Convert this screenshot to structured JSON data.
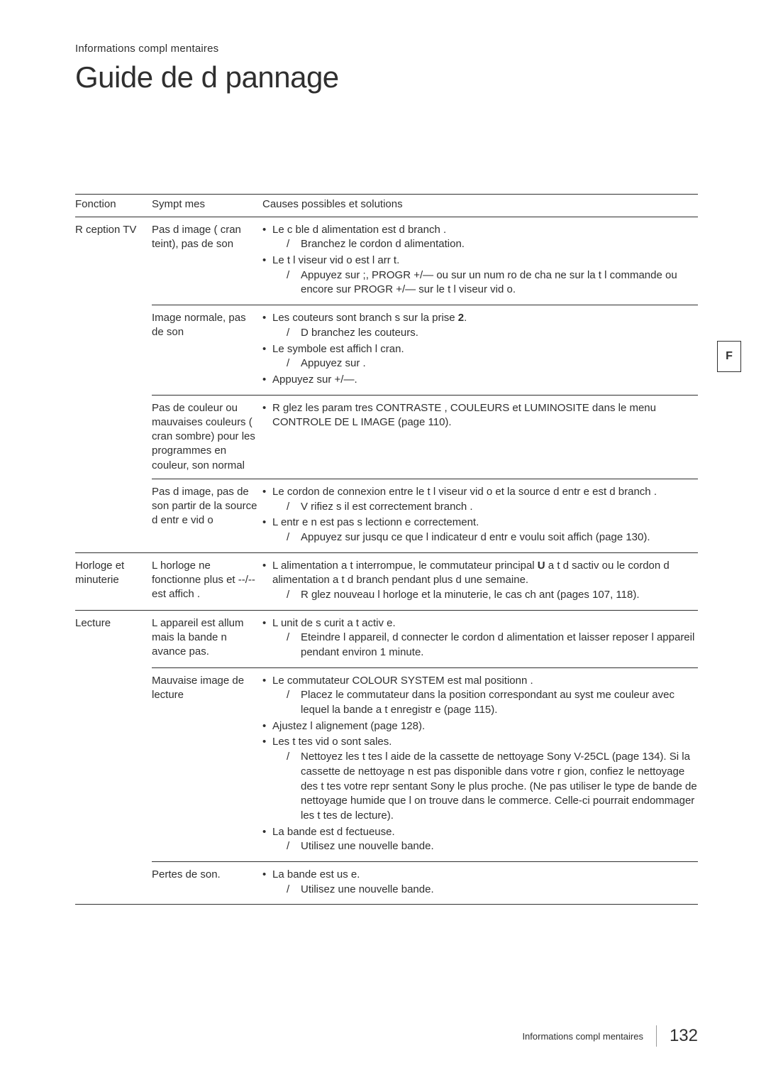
{
  "pretitle": "Informations compl mentaires",
  "title": "Guide de d pannage",
  "side_tab": "F",
  "headers": {
    "fn": "Fonction",
    "sy": "Sympt mes",
    "cs": "Causes possibles et solutions"
  },
  "groups": [
    {
      "fn": "R ception TV",
      "rows": [
        {
          "sy": "Pas d image ( cran  teint), pas de son",
          "items": [
            {
              "t": "Le c ble d alimentation est d branch .",
              "s": [
                "Branchez le cordon d alimentation."
              ]
            },
            {
              "t": "Le t l viseur vid o est  l arr t.",
              "s": [
                "Appuyez sur  ;, PROGR +/— ou sur un num ro de cha ne sur la t l commande ou encore sur PROGR +/— sur le t l viseur vid o."
              ]
            }
          ]
        },
        {
          "sy": "Image normale, pas de son",
          "items": [
            {
              "tail": ".",
              "t": "Les  couteurs sont branch s sur la prise ",
              "tb": "2",
              "s": [
                "D branchez les  couteurs."
              ]
            },
            {
              "t": "Le symbole   est affich   l cran.",
              "s": [
                "Appuyez sur    ."
              ]
            },
            {
              "t": "Appuyez sur     +/—."
            }
          ]
        },
        {
          "sy": "Pas de couleur ou mauvaises couleurs ( cran sombre) pour les programmes en couleur, son normal",
          "items": [
            {
              "t": "R glez les param tres  CONTRASTE ,  COULEURS  et  LUMINOSITE  dans le menu CONTROLE DE L IMAGE (page 110)."
            }
          ]
        },
        {
          "sy": "Pas d image, pas de son  partir de la source d entr e vid o",
          "items": [
            {
              "t": "Le cordon de connexion entre le t l viseur vid o et la source d entr e est d branch .",
              "s": [
                "V rifiez s il est correctement branch ."
              ]
            },
            {
              "t": "L entr e n est pas s lectionn e correctement.",
              "s": [
                "Appuyez sur       jusqu  ce que l indicateur d entr e voulu soit affich  (page 130)."
              ]
            }
          ]
        }
      ]
    },
    {
      "fn": "Horloge et minuterie",
      "rows": [
        {
          "sy": "L horloge ne fonctionne plus et --/-- est affich .",
          "items": [
            {
              "t": "L alimentation a t  interrompue, le commutateur principal      ",
              "tb": "U",
              "tail": " a t  d sactiv  ou le cordon d alimentation a t  d branch  pendant plus d une semaine.",
              "s": [
                "R glez  nouveau l horloge et la minuterie, le cas  ch ant (pages 107, 118)."
              ]
            }
          ]
        }
      ]
    },
    {
      "fn": "Lecture",
      "rows": [
        {
          "sy": "L appareil est allum  mais la bande n avance pas.",
          "items": [
            {
              "t": "L unit  de s curit  a t  activ e.",
              "s": [
                "Eteindre l appareil, d connecter le cordon d alimentation et laisser reposer l appareil pendant environ 1 minute."
              ]
            }
          ]
        },
        {
          "sy": "Mauvaise image de lecture",
          "items": [
            {
              "t": "Le commutateur COLOUR SYSTEM est mal positionn .",
              "s": [
                "Placez le commutateur dans la position correspondant au syst me couleur avec lequel la bande a t  enregistr e (page 115)."
              ]
            },
            {
              "t": "Ajustez l alignement (page 128)."
            },
            {
              "t": "Les t tes vid o sont sales.",
              "s": [
                "Nettoyez les t tes  l aide de la cassette de nettoyage Sony V-25CL (page 134). Si la cassette de nettoyage n est pas disponible dans votre r gion, confiez le nettoyage des t tes  votre repr sentant Sony le plus proche. (Ne pas utiliser le type de bande de nettoyage humide que l on trouve dans le commerce. Celle-ci pourrait endommager les t tes de lecture)."
              ]
            },
            {
              "t": "La bande est d fectueuse.",
              "s": [
                "Utilisez une nouvelle bande."
              ]
            }
          ]
        },
        {
          "sy": "Pertes de son.",
          "items": [
            {
              "t": "La bande est us e.",
              "s": [
                "Utilisez une nouvelle bande."
              ]
            }
          ]
        }
      ]
    }
  ],
  "footer": {
    "section": "Informations compl mentaires",
    "page": "132"
  }
}
